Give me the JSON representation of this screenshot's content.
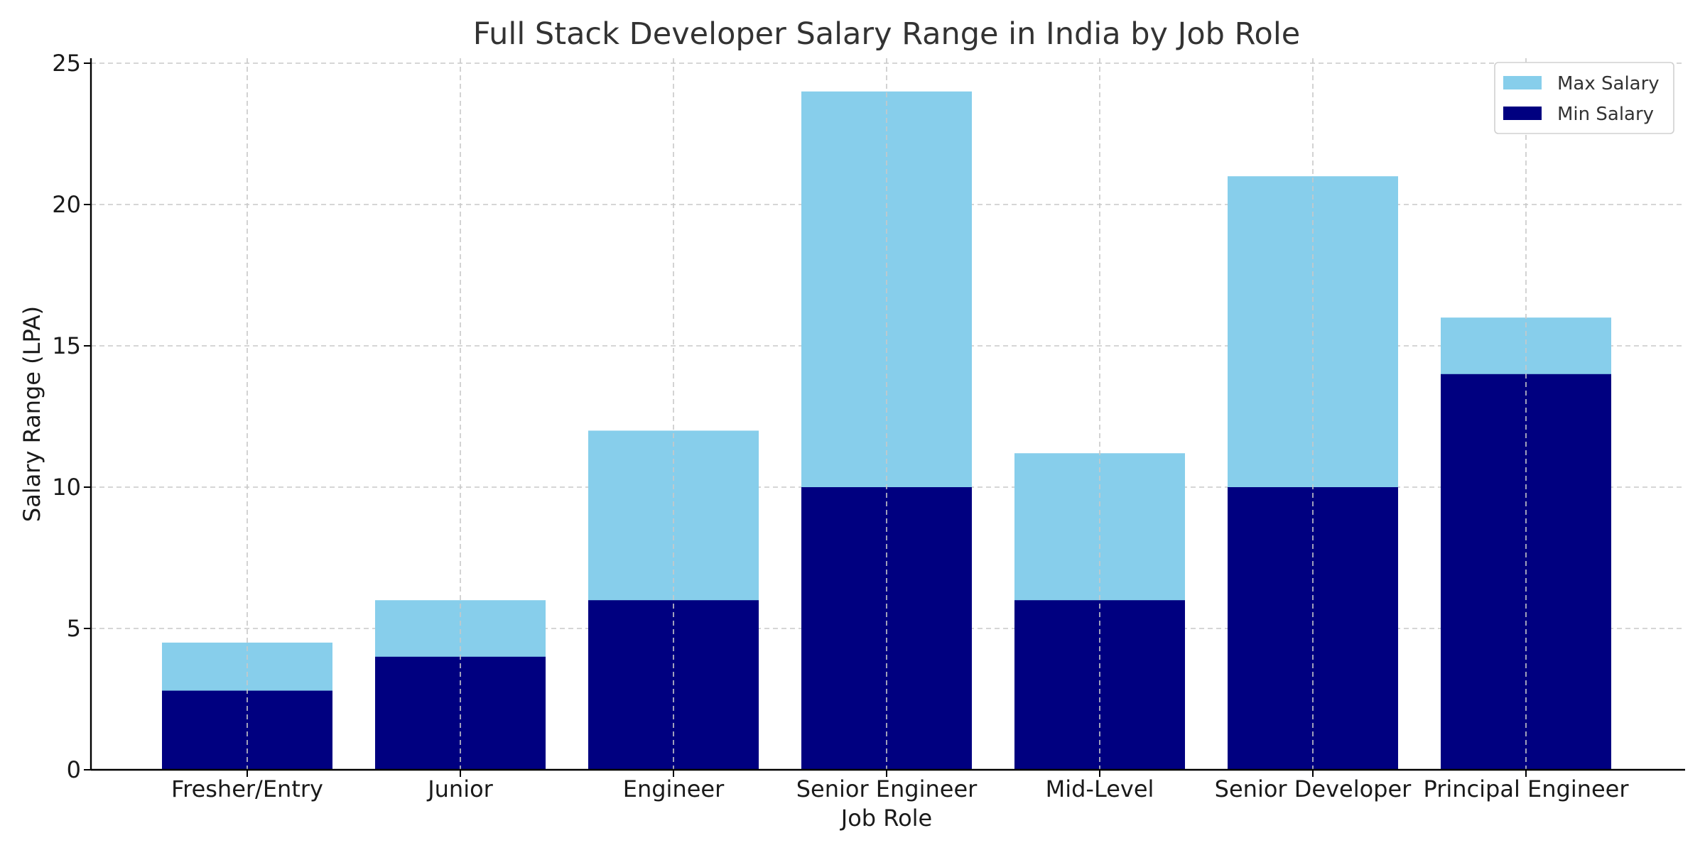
{
  "chart_data": {
    "type": "bar",
    "stacked": "overlay",
    "title": "Full Stack Developer Salary Range in India by Job Role",
    "xlabel": "Job Role",
    "ylabel": "Salary Range (LPA)",
    "ylim": [
      0,
      25
    ],
    "yticks": [
      0,
      5,
      10,
      15,
      20,
      25
    ],
    "grid": true,
    "legend_position": "top-right",
    "categories": [
      "Fresher/Entry",
      "Junior",
      "Engineer",
      "Senior Engineer",
      "Mid-Level",
      "Senior Developer",
      "Principal Engineer"
    ],
    "series": [
      {
        "name": "Max Salary",
        "color": "#87ceeb",
        "values": [
          4.5,
          6,
          12,
          24,
          11.2,
          21,
          16
        ]
      },
      {
        "name": "Min Salary",
        "color": "#000080",
        "values": [
          2.8,
          4,
          6,
          10,
          6,
          10,
          14
        ]
      }
    ]
  }
}
